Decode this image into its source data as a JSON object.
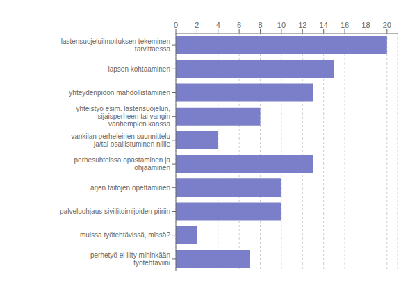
{
  "chart_data": {
    "type": "bar",
    "orientation": "horizontal",
    "categories": [
      "lastensuojeluilmoituksen tekeminen\ntarvittaessa",
      "lapsen kohtaaminen",
      "yhteydenpidon mahdollistaminen",
      "yhteistyö esim. lastensuojelun,\nsijaisperheen tai vangin\nvanhempien kanssa",
      "vankilan perheleirien suunnittelu\nja/tai osallistuminen niille",
      "perhesuhteissa opastaminen ja\nohjaaminen",
      "arjen taitojen opettaminen",
      "palveluohjaus siviilitoimijoiden piiriin",
      "muissa työtehtävissä, missä?",
      "perhetyö ei liity mihinkään\ntyötehtäviini"
    ],
    "values": [
      20,
      15,
      13,
      8,
      4,
      13,
      10,
      10,
      2,
      7
    ],
    "color": "#7b7ec8",
    "xlim": [
      0,
      21
    ],
    "xticks": [
      0,
      2,
      4,
      6,
      8,
      10,
      12,
      14,
      16,
      18,
      20
    ],
    "grid": true
  }
}
